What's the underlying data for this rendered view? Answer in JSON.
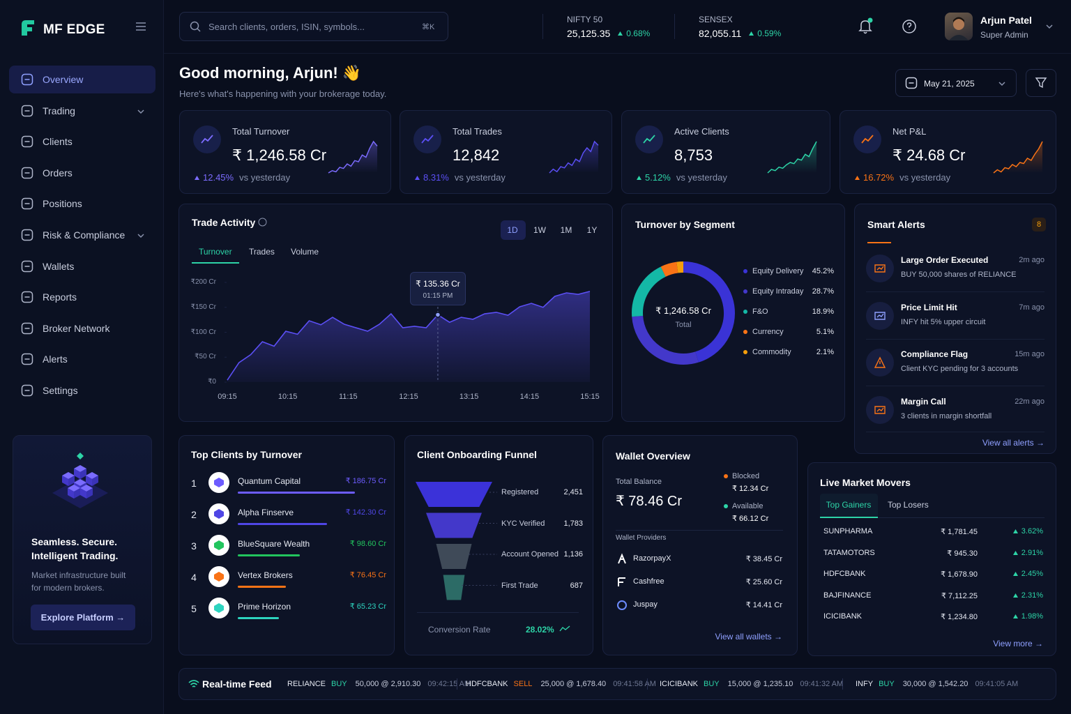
{
  "brand": "MF EDGE",
  "nav": [
    "Overview",
    "Trading",
    "Clients",
    "Orders",
    "Positions",
    "Risk & Compliance",
    "Wallets",
    "Reports",
    "Broker Network",
    "Alerts",
    "Settings"
  ],
  "promo": {
    "title": "Seamless. Secure. Intelligent Trading.",
    "text": "Market infrastructure built for modern brokers.",
    "button": "Explore Platform →"
  },
  "search": {
    "placeholder": "Search clients, orders, ISIN, symbols...",
    "shortcut": "⌘K"
  },
  "indices": [
    {
      "name": "NIFTY 50",
      "value": "25,125.35",
      "change": "0.68%"
    },
    {
      "name": "SENSEX",
      "value": "82,055.11",
      "change": "0.59%"
    }
  ],
  "user": {
    "name": "Arjun Patel",
    "role": "Super Admin"
  },
  "greeting": {
    "title": "Good morning, Arjun! 👋",
    "subtitle": "Here's what's happening with your brokerage today.",
    "date": "May 21, 2025"
  },
  "kpis": [
    {
      "title": "Total Turnover",
      "value": "₹ 1,246.58 Cr",
      "change": "12.45%",
      "note": "vs yesterday",
      "color": "#7c6cff",
      "spark": [
        8,
        10,
        9,
        13,
        12,
        16,
        14,
        19,
        18,
        24,
        22,
        30,
        36,
        32
      ]
    },
    {
      "title": "Total Trades",
      "value": "12,842",
      "change": "8.31%",
      "note": "vs yesterday",
      "color": "#5b4ff5",
      "spark": [
        6,
        9,
        7,
        11,
        10,
        14,
        12,
        17,
        15,
        22,
        26,
        23,
        31,
        28
      ]
    },
    {
      "title": "Active Clients",
      "value": "8,753",
      "change": "5.12%",
      "note": "vs yesterday",
      "color": "#2dd4a7",
      "spark": [
        5,
        8,
        7,
        10,
        9,
        12,
        14,
        13,
        17,
        16,
        21,
        19,
        26,
        32
      ]
    },
    {
      "title": "Net P&L",
      "value": "₹ 24.68 Cr",
      "change": "16.72%",
      "note": "vs yesterday",
      "color": "#f97316",
      "spark": [
        4,
        7,
        5,
        9,
        8,
        12,
        10,
        14,
        13,
        18,
        16,
        22,
        27,
        34
      ]
    }
  ],
  "trade_activity": {
    "type": "area",
    "title": "Trade Activity",
    "ranges": [
      "1D",
      "1W",
      "1M",
      "1Y"
    ],
    "tabs": [
      "Turnover",
      "Trades",
      "Volume"
    ],
    "tooltip": {
      "value": "₹ 135.36 Cr",
      "time": "01:15 PM"
    },
    "xticks": [
      "09:15",
      "10:15",
      "11:15",
      "12:15",
      "13:15",
      "14:15",
      "15:15"
    ],
    "values": [
      4,
      39,
      55,
      81,
      72,
      102,
      96,
      123,
      115,
      130,
      116,
      109,
      102,
      116,
      137,
      109,
      112,
      109,
      135,
      120,
      130,
      126,
      137,
      140,
      134,
      151,
      158,
      150,
      172,
      179,
      176,
      182
    ],
    "ylim": [
      0,
      200
    ],
    "yticks": [
      {
        "value": 0,
        "label": "₹0"
      },
      {
        "value": 50,
        "label": "₹50 Cr"
      },
      {
        "value": 100,
        "label": "₹100 Cr"
      },
      {
        "value": 150,
        "label": "₹150 Cr"
      },
      {
        "value": 200,
        "label": "₹200 Cr"
      }
    ],
    "color": "#5b4ff5"
  },
  "segments": {
    "type": "donut",
    "title": "Turnover by Segment",
    "center_value": "₹ 1,246.58 Cr",
    "center_label": "Total",
    "categories": [
      "Equity Delivery",
      "Equity Intraday",
      "F&O",
      "Currency",
      "Commodity"
    ],
    "values": [
      45.2,
      28.7,
      18.9,
      5.1,
      2.1
    ],
    "value_labels": [
      "45.2%",
      "28.7%",
      "18.9%",
      "5.1%",
      "2.1%"
    ],
    "colors": [
      "#3a33d6",
      "#4338ca",
      "#14b8a6",
      "#f97316",
      "#f59e0b"
    ]
  },
  "alerts": {
    "title": "Smart Alerts",
    "count": 8,
    "items": [
      {
        "title": "Large Order Executed",
        "text": "BUY 50,000 shares of RELIANCE",
        "time": "2m ago"
      },
      {
        "title": "Price Limit Hit",
        "text": "INFY hit 5% upper circuit",
        "time": "7m ago"
      },
      {
        "title": "Compliance Flag",
        "text": "Client KYC pending for 3 accounts",
        "time": "15m ago"
      },
      {
        "title": "Margin Call",
        "text": "3 clients in margin shortfall",
        "time": "22m ago"
      }
    ],
    "link": "View all alerts →"
  },
  "top_clients": {
    "title": "Top Clients by Turnover",
    "rows": [
      {
        "rank": 1,
        "name": "Quantum Capital",
        "value": 186.75,
        "value_label": "₹ 186.75 Cr",
        "color": "#6d5cff"
      },
      {
        "rank": 2,
        "name": "Alpha Finserve",
        "value": 142.3,
        "value_label": "₹ 142.30 Cr",
        "color": "#4f46e5"
      },
      {
        "rank": 3,
        "name": "BlueSquare Wealth",
        "value": 98.6,
        "value_label": "₹ 98.60 Cr",
        "color": "#22c55e"
      },
      {
        "rank": 4,
        "name": "Vertex Brokers",
        "value": 76.45,
        "value_label": "₹ 76.45 Cr",
        "color": "#f97316"
      },
      {
        "rank": 5,
        "name": "Prime Horizon",
        "value": 65.23,
        "value_label": "₹ 65.23 Cr",
        "color": "#2dd4bf"
      }
    ]
  },
  "funnel": {
    "type": "funnel",
    "title": "Client Onboarding Funnel",
    "categories": [
      "Registered",
      "KYC Verified",
      "Account Opened",
      "First Trade"
    ],
    "values": [
      2451,
      1783,
      1136,
      687
    ],
    "value_labels": [
      "2,451",
      "1,783",
      "1,136",
      "687"
    ],
    "colors": [
      "#3b32d9",
      "#4338ca",
      "#3f4a58",
      "#2c6b66"
    ],
    "conversion_label": "Conversion Rate",
    "conversion_value": "28.02%"
  },
  "wallet": {
    "title": "Wallet Overview",
    "total_label": "Total Balance",
    "total_value": "₹ 78.46 Cr",
    "blocked_label": "Blocked",
    "blocked_value": "₹ 12.34 Cr",
    "available_label": "Available",
    "available_value": "₹ 66.12 Cr",
    "providers_label": "Wallet Providers",
    "providers": [
      {
        "name": "RazorpayX",
        "value": "₹ 38.45 Cr"
      },
      {
        "name": "Cashfree",
        "value": "₹ 25.60 Cr"
      },
      {
        "name": "Juspay",
        "value": "₹ 14.41 Cr"
      }
    ],
    "link": "View all wallets →"
  },
  "movers": {
    "title": "Live Market Movers",
    "tabs": [
      "Top Gainers",
      "Top Losers"
    ],
    "rows": [
      {
        "symbol": "SUNPHARMA",
        "price": "₹ 1,781.45",
        "change": "3.62%"
      },
      {
        "symbol": "TATAMOTORS",
        "price": "₹ 945.30",
        "change": "2.91%"
      },
      {
        "symbol": "HDFCBANK",
        "price": "₹ 1,678.90",
        "change": "2.45%"
      },
      {
        "symbol": "BAJFINANCE",
        "price": "₹ 7,112.25",
        "change": "2.31%"
      },
      {
        "symbol": "ICICIBANK",
        "price": "₹ 1,234.80",
        "change": "1.98%"
      }
    ],
    "link": "View more →"
  },
  "feed": {
    "title": "Real-time Feed",
    "items": [
      {
        "symbol": "RELIANCE",
        "side": "BUY",
        "qty": "50,000 @ 2,910.30",
        "time": "09:42:15 AM"
      },
      {
        "symbol": "HDFCBANK",
        "side": "SELL",
        "qty": "25,000 @ 1,678.40",
        "time": "09:41:58 AM"
      },
      {
        "symbol": "ICICIBANK",
        "side": "BUY",
        "qty": "15,000 @ 1,235.10",
        "time": "09:41:32 AM"
      },
      {
        "symbol": "INFY",
        "side": "BUY",
        "qty": "30,000 @ 1,542.20",
        "time": "09:41:05 AM"
      }
    ]
  }
}
